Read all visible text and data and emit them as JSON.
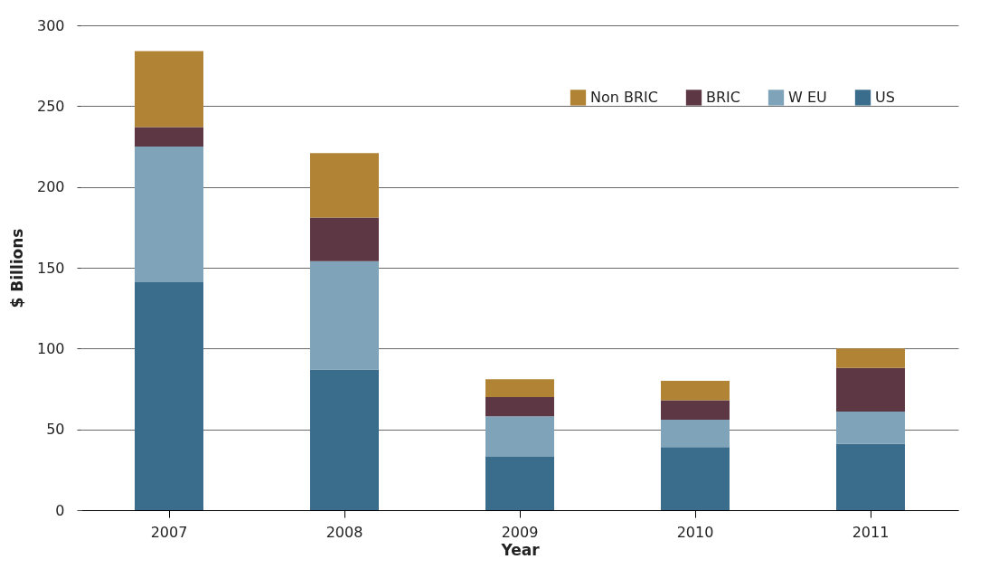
{
  "chart_data": {
    "type": "bar",
    "xlabel": "Year",
    "ylabel": "$ Billions",
    "categories": [
      "2007",
      "2008",
      "2009",
      "2010",
      "2011"
    ],
    "stacked": true,
    "ylim": [
      0,
      300
    ],
    "yticks": [
      0,
      50,
      100,
      150,
      200,
      250,
      300
    ],
    "grid": "y",
    "legend": "top right",
    "series": [
      {
        "name": "US",
        "color": "#3a6d8c",
        "values": [
          141,
          87,
          33,
          39,
          41
        ]
      },
      {
        "name": "W EU",
        "color": "#7fa3b8",
        "values": [
          84,
          67,
          25,
          17,
          20
        ]
      },
      {
        "name": "BRIC",
        "color": "#5e3744",
        "values": [
          12,
          27,
          12,
          12,
          27
        ]
      },
      {
        "name": "Non BRIC",
        "color": "#b08434",
        "values": [
          47,
          40,
          11,
          12,
          12
        ]
      }
    ]
  }
}
